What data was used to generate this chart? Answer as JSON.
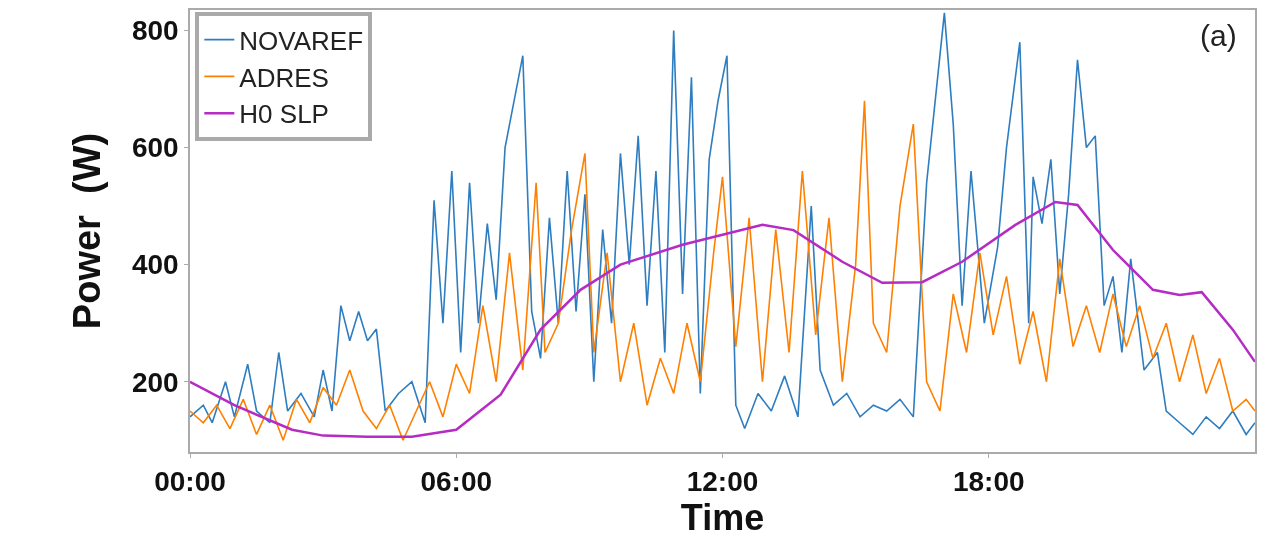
{
  "chart_data": {
    "type": "line",
    "xlabel": "Time",
    "ylabel": "Power  (W)",
    "annotations": [
      "(a)"
    ],
    "xlim": [
      0,
      24
    ],
    "xticks": [
      {
        "value": 0,
        "label": "00:00"
      },
      {
        "value": 6,
        "label": "06:00"
      },
      {
        "value": 12,
        "label": "12:00"
      },
      {
        "value": 18,
        "label": "18:00"
      }
    ],
    "ylim": [
      80,
      835
    ],
    "yticks": [
      200,
      400,
      600,
      800
    ],
    "grid": false,
    "legend": "top left",
    "marker": "none",
    "line_style": "solid",
    "series": [
      {
        "name": "NOVAREF",
        "color": "#2e7dc0",
        "x": [
          0,
          0.3,
          0.5,
          0.8,
          1.0,
          1.3,
          1.5,
          1.8,
          2.0,
          2.2,
          2.5,
          2.8,
          3.0,
          3.2,
          3.4,
          3.6,
          3.8,
          4.0,
          4.2,
          4.4,
          4.7,
          5.0,
          5.3,
          5.5,
          5.7,
          5.9,
          6.1,
          6.3,
          6.5,
          6.7,
          6.9,
          7.1,
          7.5,
          7.7,
          7.9,
          8.1,
          8.3,
          8.5,
          8.7,
          8.9,
          9.1,
          9.3,
          9.5,
          9.7,
          9.9,
          10.1,
          10.3,
          10.5,
          10.7,
          10.9,
          11.1,
          11.3,
          11.5,
          11.7,
          11.9,
          12.1,
          12.3,
          12.5,
          12.8,
          13.1,
          13.4,
          13.7,
          14.0,
          14.2,
          14.5,
          14.8,
          15.1,
          15.4,
          15.7,
          16.0,
          16.3,
          16.6,
          17.0,
          17.2,
          17.4,
          17.6,
          17.9,
          18.2,
          18.4,
          18.7,
          18.9,
          19.0,
          19.2,
          19.4,
          19.6,
          19.8,
          20.0,
          20.2,
          20.4,
          20.6,
          20.8,
          21.0,
          21.2,
          21.5,
          21.8,
          22.0,
          22.3,
          22.6,
          22.9,
          23.2,
          23.5,
          23.8,
          24
        ],
        "values": [
          140,
          160,
          130,
          200,
          140,
          230,
          150,
          130,
          250,
          150,
          180,
          140,
          220,
          150,
          330,
          270,
          320,
          270,
          290,
          150,
          180,
          200,
          130,
          510,
          300,
          560,
          250,
          540,
          300,
          470,
          340,
          600,
          757,
          320,
          240,
          480,
          300,
          560,
          320,
          520,
          200,
          460,
          300,
          590,
          400,
          620,
          330,
          560,
          250,
          800,
          350,
          720,
          180,
          580,
          680,
          757,
          160,
          120,
          180,
          150,
          210,
          140,
          500,
          220,
          160,
          180,
          140,
          160,
          150,
          170,
          140,
          540,
          830,
          640,
          330,
          560,
          300,
          430,
          600,
          780,
          300,
          550,
          470,
          580,
          350,
          520,
          750,
          600,
          620,
          330,
          380,
          250,
          410,
          220,
          250,
          150,
          130,
          110,
          140,
          120,
          150,
          110,
          130
        ]
      },
      {
        "name": "ADRES",
        "color": "#ff8000",
        "x": [
          0,
          0.3,
          0.6,
          0.9,
          1.2,
          1.5,
          1.8,
          2.1,
          2.4,
          2.7,
          3.0,
          3.3,
          3.6,
          3.9,
          4.2,
          4.5,
          4.8,
          5.1,
          5.4,
          5.7,
          6.0,
          6.3,
          6.6,
          6.9,
          7.2,
          7.5,
          7.8,
          8.0,
          8.3,
          8.6,
          8.9,
          9.1,
          9.4,
          9.7,
          10.0,
          10.3,
          10.6,
          10.9,
          11.2,
          11.5,
          11.8,
          12.0,
          12.3,
          12.6,
          12.9,
          13.2,
          13.5,
          13.8,
          14.1,
          14.4,
          14.7,
          15.0,
          15.2,
          15.4,
          15.7,
          16.0,
          16.3,
          16.6,
          16.9,
          17.2,
          17.5,
          17.8,
          18.1,
          18.4,
          18.7,
          19.0,
          19.3,
          19.6,
          19.9,
          20.2,
          20.5,
          20.8,
          21.1,
          21.4,
          21.7,
          22.0,
          22.3,
          22.6,
          22.9,
          23.2,
          23.5,
          23.8,
          24
        ],
        "values": [
          150,
          130,
          160,
          120,
          170,
          110,
          160,
          100,
          170,
          130,
          190,
          160,
          220,
          150,
          120,
          160,
          100,
          150,
          200,
          140,
          230,
          180,
          330,
          200,
          420,
          220,
          540,
          250,
          300,
          460,
          590,
          250,
          420,
          200,
          300,
          160,
          240,
          180,
          300,
          200,
          420,
          550,
          260,
          480,
          200,
          460,
          250,
          560,
          280,
          480,
          200,
          400,
          680,
          300,
          250,
          500,
          640,
          200,
          150,
          350,
          250,
          420,
          280,
          380,
          230,
          320,
          200,
          410,
          260,
          330,
          250,
          350,
          260,
          330,
          240,
          300,
          200,
          280,
          180,
          240,
          150,
          170,
          150
        ]
      },
      {
        "name": "H0 SLP",
        "color": "#b52bc4",
        "x": [
          0,
          1,
          2.3,
          3,
          4,
          5,
          6,
          7,
          7.9,
          8.8,
          9.7,
          11.1,
          12,
          12.9,
          13.6,
          14.7,
          15.6,
          16.5,
          17.4,
          18.6,
          19.5,
          20,
          20.8,
          21.7,
          22.3,
          22.8,
          23.5,
          24
        ],
        "values": [
          200,
          160,
          118,
          108,
          106,
          106,
          118,
          178,
          289,
          357,
          400,
          434,
          451,
          468,
          459,
          405,
          369,
          370,
          405,
          468,
          507,
          502,
          425,
          357,
          348,
          353,
          289,
          234
        ]
      }
    ]
  }
}
